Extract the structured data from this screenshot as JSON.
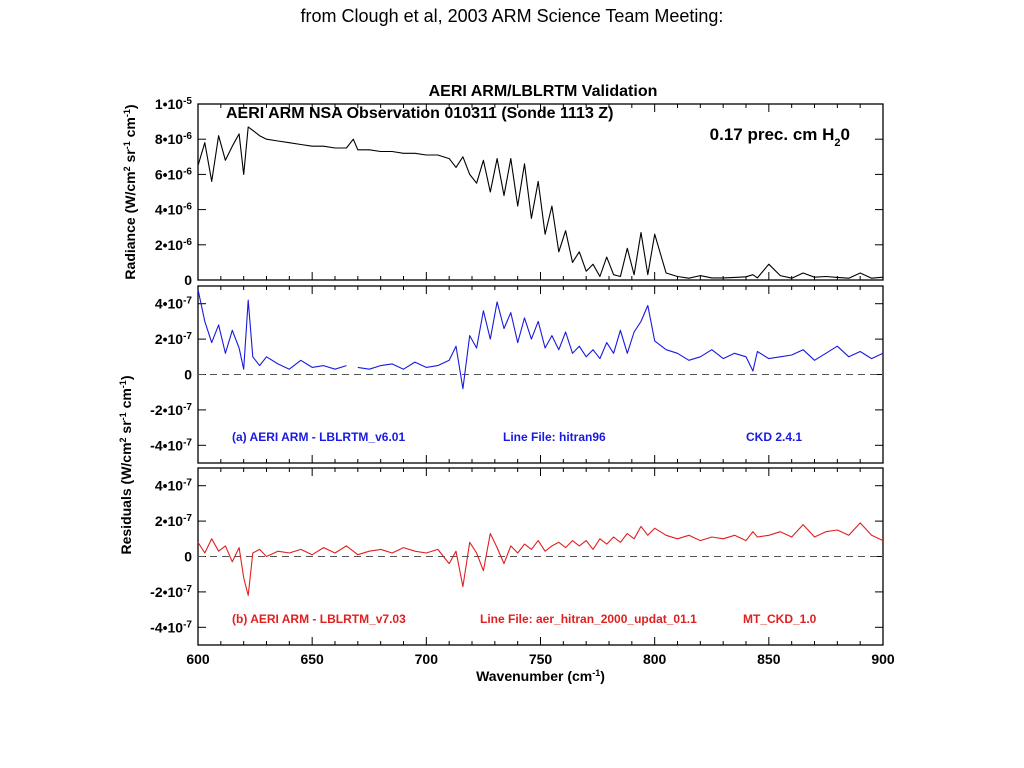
{
  "page": {
    "title": "from Clough et al, 2003 ARM Science Team Meeting:"
  },
  "colors": {
    "axes": "#000000",
    "radiance_line": "#000000",
    "residual_a": "#1a1adf",
    "residual_b": "#e02020",
    "zero_dash": "#555555"
  },
  "chart_data": [
    {
      "type": "line",
      "title": "AERI ARM/LBLRTM Validation",
      "subtitle": "AERI  ARM NSA Observation 010311  (Sonde 1113 Z)",
      "annotation": {
        "text": "0.17 prec. cm H",
        "sub": "2",
        "tail": "0"
      },
      "ylabel": {
        "text": "Radiance (W/cm",
        "sup1": "2",
        "mid": " sr",
        "sup2": "-1",
        "mid2": " cm",
        "sup3": "-1",
        "end": ")"
      },
      "xlim": [
        600,
        900
      ],
      "ylim": [
        0,
        1e-05
      ],
      "grid": false,
      "yticks": [
        {
          "value": 0,
          "label": "0"
        },
        {
          "value": 2e-06,
          "label": "2•10",
          "exp": "-6"
        },
        {
          "value": 4e-06,
          "label": "4•10",
          "exp": "-6"
        },
        {
          "value": 6e-06,
          "label": "6•10",
          "exp": "-6"
        },
        {
          "value": 8e-06,
          "label": "8•10",
          "exp": "-6"
        },
        {
          "value": 1e-05,
          "label": "1•10",
          "exp": "-5"
        }
      ],
      "series": [
        {
          "x": [
            600,
            603,
            606,
            609,
            612,
            615,
            618,
            620,
            622,
            624,
            627,
            630,
            635,
            640,
            645,
            650,
            655,
            660,
            665,
            668,
            670,
            675,
            680,
            685,
            690,
            695,
            700,
            705,
            710,
            713,
            716,
            719,
            722,
            725,
            728,
            731,
            734,
            737,
            740,
            743,
            746,
            749,
            752,
            755,
            758,
            761,
            764,
            767,
            770,
            773,
            776,
            779,
            782,
            785,
            788,
            791,
            794,
            797,
            800,
            805,
            810,
            815,
            820,
            825,
            830,
            835,
            840,
            843,
            845,
            850,
            855,
            860,
            865,
            870,
            875,
            880,
            885,
            890,
            895,
            900
          ],
          "y": [
            6.5e-06,
            7.8e-06,
            5.6e-06,
            8.2e-06,
            6.8e-06,
            7.6e-06,
            8.3e-06,
            6e-06,
            8.7e-06,
            8.5e-06,
            8.2e-06,
            8e-06,
            7.9e-06,
            7.8e-06,
            7.7e-06,
            7.6e-06,
            7.6e-06,
            7.5e-06,
            7.5e-06,
            8e-06,
            7.4e-06,
            7.4e-06,
            7.3e-06,
            7.3e-06,
            7.2e-06,
            7.2e-06,
            7.1e-06,
            7.1e-06,
            6.9e-06,
            6.4e-06,
            7e-06,
            6e-06,
            5.5e-06,
            6.8e-06,
            5e-06,
            6.9e-06,
            4.8e-06,
            6.9e-06,
            4.2e-06,
            6.6e-06,
            3.5e-06,
            5.6e-06,
            2.6e-06,
            4.2e-06,
            1.6e-06,
            2.8e-06,
            1e-06,
            1.6e-06,
            5e-07,
            9e-07,
            2e-07,
            1.3e-06,
            3e-07,
            2e-07,
            1.8e-06,
            3e-07,
            2.7e-06,
            3e-07,
            2.6e-06,
            4e-07,
            2e-07,
            1e-07,
            2.5e-07,
            1.2e-07,
            1.2e-07,
            1.5e-07,
            1.8e-07,
            3e-07,
            1.2e-07,
            9e-07,
            2.5e-07,
            1e-07,
            4e-07,
            1.6e-07,
            2e-07,
            1.5e-07,
            1e-07,
            4e-07,
            1e-07,
            1.6e-07
          ]
        }
      ]
    },
    {
      "type": "line",
      "ylabel_shared": {
        "text": "Residuals   (W/cm",
        "sup1": "2",
        "mid": " sr",
        "sup2": "-1",
        "mid2": " cm",
        "sup3": "-1",
        "end": ")"
      },
      "xlim": [
        600,
        900
      ],
      "ylim": [
        -5e-07,
        5e-07
      ],
      "yticks": [
        {
          "value": 4e-07,
          "label": "4•10",
          "exp": "-7"
        },
        {
          "value": 2e-07,
          "label": "2•10",
          "exp": "-7"
        },
        {
          "value": 0,
          "label": "0"
        },
        {
          "value": -2e-07,
          "label": "-2•10",
          "exp": "-7"
        },
        {
          "value": -4e-07,
          "label": "-4•10",
          "exp": "-7"
        }
      ],
      "legend": {
        "left": "(a)  AERI  ARM - LBLRTM_v6.01",
        "middle": "Line File: hitran96",
        "right": "CKD 2.4.1"
      },
      "series": [
        {
          "x": [
            600,
            603,
            606,
            609,
            612,
            615,
            618,
            620,
            622,
            624,
            627,
            630,
            635,
            640,
            645,
            650,
            655,
            660,
            665,
            668,
            670,
            675,
            680,
            685,
            690,
            695,
            700,
            705,
            710,
            713,
            716,
            719,
            722,
            725,
            728,
            731,
            734,
            737,
            740,
            743,
            746,
            749,
            752,
            755,
            758,
            761,
            764,
            767,
            770,
            773,
            776,
            779,
            782,
            785,
            788,
            791,
            794,
            797,
            800,
            805,
            810,
            815,
            820,
            825,
            830,
            835,
            840,
            843,
            845,
            850,
            855,
            860,
            865,
            870,
            875,
            880,
            885,
            890,
            895,
            900
          ],
          "y": [
            4.8e-07,
            3e-07,
            1.8e-07,
            2.8e-07,
            1.2e-07,
            2.5e-07,
            1.5e-07,
            3e-08,
            4.2e-07,
            1e-07,
            5e-08,
            1e-07,
            6e-08,
            3e-08,
            8e-08,
            4e-08,
            5e-08,
            3e-08,
            5e-08,
            null,
            4e-08,
            3e-08,
            5e-08,
            6e-08,
            3e-08,
            7e-08,
            4e-08,
            5e-08,
            8e-08,
            1.6e-07,
            -8e-08,
            2.2e-07,
            1.5e-07,
            3.6e-07,
            2e-07,
            4.1e-07,
            2.6e-07,
            3.5e-07,
            1.8e-07,
            3.2e-07,
            2e-07,
            3e-07,
            1.5e-07,
            2.2e-07,
            1.4e-07,
            2.4e-07,
            1.2e-07,
            1.6e-07,
            1e-07,
            1.4e-07,
            9e-08,
            1.8e-07,
            1.2e-07,
            2.5e-07,
            1.2e-07,
            2.4e-07,
            3e-07,
            3.9e-07,
            1.9e-07,
            1.4e-07,
            1.2e-07,
            8e-08,
            1e-07,
            1.4e-07,
            9e-08,
            1.2e-07,
            1e-07,
            2e-08,
            1.3e-07,
            9e-08,
            1e-07,
            1.1e-07,
            1.4e-07,
            8e-08,
            1.2e-07,
            1.6e-07,
            1e-07,
            1.3e-07,
            9e-08,
            1.2e-07
          ]
        }
      ]
    },
    {
      "type": "line",
      "xlabel": {
        "text": "Wavenumber (cm",
        "sup": "-1",
        "end": ")"
      },
      "xlim": [
        600,
        900
      ],
      "ylim": [
        -5e-07,
        5e-07
      ],
      "xticks": [
        600,
        650,
        700,
        750,
        800,
        850,
        900
      ],
      "yticks": [
        {
          "value": 4e-07,
          "label": "4•10",
          "exp": "-7"
        },
        {
          "value": 2e-07,
          "label": "2•10",
          "exp": "-7"
        },
        {
          "value": 0,
          "label": "0"
        },
        {
          "value": -2e-07,
          "label": "-2•10",
          "exp": "-7"
        },
        {
          "value": -4e-07,
          "label": "-4•10",
          "exp": "-7"
        }
      ],
      "legend": {
        "left": "(b)  AERI  ARM -  LBLRTM_v7.03",
        "middle": "Line File: aer_hitran_2000_updat_01.1",
        "right": "MT_CKD_1.0"
      },
      "series": [
        {
          "x": [
            600,
            603,
            606,
            609,
            612,
            615,
            618,
            620,
            622,
            624,
            627,
            630,
            635,
            640,
            645,
            650,
            655,
            660,
            665,
            668,
            670,
            675,
            680,
            685,
            690,
            695,
            700,
            705,
            710,
            713,
            716,
            719,
            722,
            725,
            728,
            731,
            734,
            737,
            740,
            743,
            746,
            749,
            752,
            755,
            758,
            761,
            764,
            767,
            770,
            773,
            776,
            779,
            782,
            785,
            788,
            791,
            794,
            797,
            800,
            805,
            810,
            815,
            820,
            825,
            830,
            835,
            840,
            843,
            845,
            850,
            855,
            860,
            865,
            870,
            875,
            880,
            885,
            890,
            895,
            900
          ],
          "y": [
            8e-08,
            2e-08,
            1e-07,
            3e-08,
            6e-08,
            -3e-08,
            5e-08,
            -1.2e-07,
            -2.2e-07,
            2e-08,
            4e-08,
            0.0,
            3e-08,
            2e-08,
            4e-08,
            1e-08,
            5e-08,
            2e-08,
            6e-08,
            3e-08,
            1e-08,
            3e-08,
            4e-08,
            2e-08,
            5e-08,
            3e-08,
            2e-08,
            4e-08,
            -4e-08,
            3e-08,
            -1.7e-07,
            8e-08,
            2e-08,
            -8e-08,
            1.3e-07,
            5e-08,
            -4e-08,
            6e-08,
            2e-08,
            7e-08,
            4e-08,
            9e-08,
            3e-08,
            6e-08,
            8e-08,
            5e-08,
            9e-08,
            6e-08,
            9e-08,
            4e-08,
            1e-07,
            7e-08,
            1.1e-07,
            8e-08,
            1.3e-07,
            1e-07,
            1.7e-07,
            1.2e-07,
            1.6e-07,
            1.2e-07,
            1e-07,
            1.2e-07,
            9e-08,
            1.1e-07,
            1e-07,
            1.2e-07,
            9e-08,
            1.4e-07,
            1.1e-07,
            1.2e-07,
            1.4e-07,
            1.1e-07,
            1.8e-07,
            1.1e-07,
            1.4e-07,
            1.5e-07,
            1.2e-07,
            1.9e-07,
            1.2e-07,
            9e-08
          ]
        }
      ]
    }
  ]
}
